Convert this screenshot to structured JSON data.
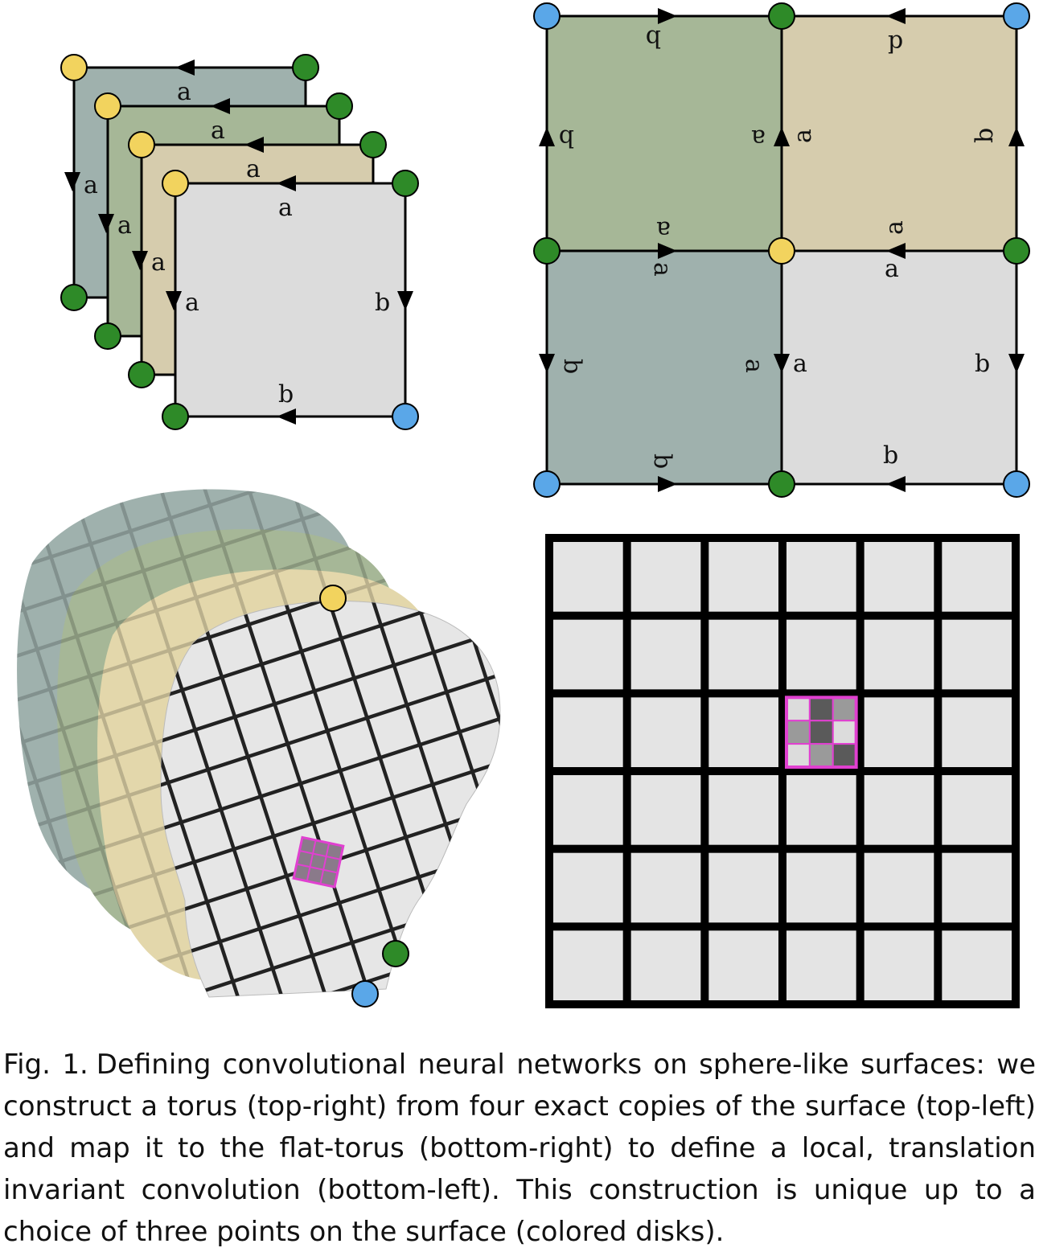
{
  "colors": {
    "yellow": "#f2d35e",
    "green": "#2e8a28",
    "blue": "#5aa7e8",
    "copy1": "#9fb1ad",
    "copy2": "#a6b797",
    "copy3": "#d6ccad",
    "copy4": "#dcdcdc",
    "grid_cell": "#e4e4e4",
    "kernel_border": "#e040d0"
  },
  "panels": {
    "top_left": {
      "description_name": "four-surface-copies",
      "edge_labels": {
        "copy1": {
          "top": "a",
          "left": "a"
        },
        "copy2": {
          "top": "a",
          "left": "a"
        },
        "copy3": {
          "top": "a",
          "left": "a"
        },
        "copy4": {
          "top": "a",
          "left": "a",
          "right": "b",
          "bottom": "b"
        }
      }
    },
    "top_right": {
      "description_name": "torus-construction",
      "labels": {
        "a": "a",
        "b": "b"
      }
    },
    "bottom_left": {
      "description_name": "surface-convolution"
    },
    "bottom_right": {
      "description_name": "flat-torus-grid",
      "grid_size": 6,
      "kernel_cell": [
        2,
        3
      ],
      "kernel_pattern": [
        [
          "light",
          "dark",
          "mid"
        ],
        [
          "mid",
          "dark",
          "light"
        ],
        [
          "light",
          "mid",
          "dark"
        ]
      ]
    }
  },
  "caption": {
    "label": "Fig. 1.",
    "text": "Defining convolutional neural networks on sphere-like surfaces: we construct a torus (top-right) from four exact copies of the surface (top-left) and map it to the flat-torus (bottom-right) to define a local, translation invariant convolution (bottom-left). This construction is unique up to a choice of three points on the surface (colored disks)."
  }
}
